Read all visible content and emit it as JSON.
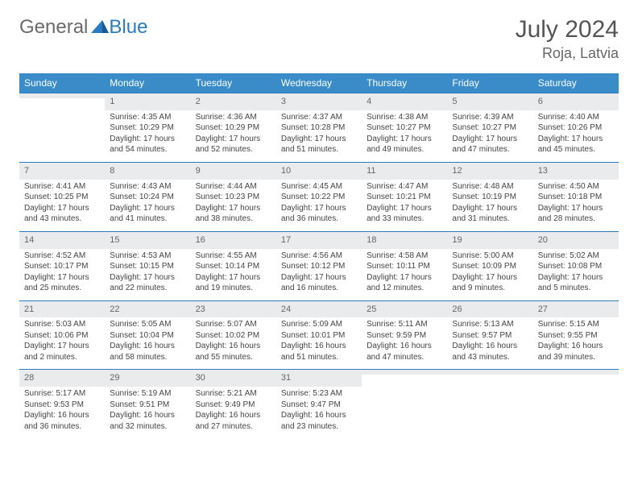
{
  "logo": {
    "general": "General",
    "blue": "Blue"
  },
  "title": "July 2024",
  "location": "Roja, Latvia",
  "weekdays": [
    "Sunday",
    "Monday",
    "Tuesday",
    "Wednesday",
    "Thursday",
    "Friday",
    "Saturday"
  ],
  "colors": {
    "header_bg": "#3a8cc8",
    "header_text": "#ffffff",
    "border": "#2a7bbf",
    "daynum_bg": "#e9ebec",
    "text": "#444444",
    "title_text": "#555555",
    "logo_blue": "#2a7bbf",
    "logo_gray": "#6a6a6a"
  },
  "weeks": [
    [
      {
        "num": "",
        "sunrise": "",
        "sunset": "",
        "daylight": ""
      },
      {
        "num": "1",
        "sunrise": "Sunrise: 4:35 AM",
        "sunset": "Sunset: 10:29 PM",
        "daylight": "Daylight: 17 hours and 54 minutes."
      },
      {
        "num": "2",
        "sunrise": "Sunrise: 4:36 AM",
        "sunset": "Sunset: 10:29 PM",
        "daylight": "Daylight: 17 hours and 52 minutes."
      },
      {
        "num": "3",
        "sunrise": "Sunrise: 4:37 AM",
        "sunset": "Sunset: 10:28 PM",
        "daylight": "Daylight: 17 hours and 51 minutes."
      },
      {
        "num": "4",
        "sunrise": "Sunrise: 4:38 AM",
        "sunset": "Sunset: 10:27 PM",
        "daylight": "Daylight: 17 hours and 49 minutes."
      },
      {
        "num": "5",
        "sunrise": "Sunrise: 4:39 AM",
        "sunset": "Sunset: 10:27 PM",
        "daylight": "Daylight: 17 hours and 47 minutes."
      },
      {
        "num": "6",
        "sunrise": "Sunrise: 4:40 AM",
        "sunset": "Sunset: 10:26 PM",
        "daylight": "Daylight: 17 hours and 45 minutes."
      }
    ],
    [
      {
        "num": "7",
        "sunrise": "Sunrise: 4:41 AM",
        "sunset": "Sunset: 10:25 PM",
        "daylight": "Daylight: 17 hours and 43 minutes."
      },
      {
        "num": "8",
        "sunrise": "Sunrise: 4:43 AM",
        "sunset": "Sunset: 10:24 PM",
        "daylight": "Daylight: 17 hours and 41 minutes."
      },
      {
        "num": "9",
        "sunrise": "Sunrise: 4:44 AM",
        "sunset": "Sunset: 10:23 PM",
        "daylight": "Daylight: 17 hours and 38 minutes."
      },
      {
        "num": "10",
        "sunrise": "Sunrise: 4:45 AM",
        "sunset": "Sunset: 10:22 PM",
        "daylight": "Daylight: 17 hours and 36 minutes."
      },
      {
        "num": "11",
        "sunrise": "Sunrise: 4:47 AM",
        "sunset": "Sunset: 10:21 PM",
        "daylight": "Daylight: 17 hours and 33 minutes."
      },
      {
        "num": "12",
        "sunrise": "Sunrise: 4:48 AM",
        "sunset": "Sunset: 10:19 PM",
        "daylight": "Daylight: 17 hours and 31 minutes."
      },
      {
        "num": "13",
        "sunrise": "Sunrise: 4:50 AM",
        "sunset": "Sunset: 10:18 PM",
        "daylight": "Daylight: 17 hours and 28 minutes."
      }
    ],
    [
      {
        "num": "14",
        "sunrise": "Sunrise: 4:52 AM",
        "sunset": "Sunset: 10:17 PM",
        "daylight": "Daylight: 17 hours and 25 minutes."
      },
      {
        "num": "15",
        "sunrise": "Sunrise: 4:53 AM",
        "sunset": "Sunset: 10:15 PM",
        "daylight": "Daylight: 17 hours and 22 minutes."
      },
      {
        "num": "16",
        "sunrise": "Sunrise: 4:55 AM",
        "sunset": "Sunset: 10:14 PM",
        "daylight": "Daylight: 17 hours and 19 minutes."
      },
      {
        "num": "17",
        "sunrise": "Sunrise: 4:56 AM",
        "sunset": "Sunset: 10:12 PM",
        "daylight": "Daylight: 17 hours and 16 minutes."
      },
      {
        "num": "18",
        "sunrise": "Sunrise: 4:58 AM",
        "sunset": "Sunset: 10:11 PM",
        "daylight": "Daylight: 17 hours and 12 minutes."
      },
      {
        "num": "19",
        "sunrise": "Sunrise: 5:00 AM",
        "sunset": "Sunset: 10:09 PM",
        "daylight": "Daylight: 17 hours and 9 minutes."
      },
      {
        "num": "20",
        "sunrise": "Sunrise: 5:02 AM",
        "sunset": "Sunset: 10:08 PM",
        "daylight": "Daylight: 17 hours and 5 minutes."
      }
    ],
    [
      {
        "num": "21",
        "sunrise": "Sunrise: 5:03 AM",
        "sunset": "Sunset: 10:06 PM",
        "daylight": "Daylight: 17 hours and 2 minutes."
      },
      {
        "num": "22",
        "sunrise": "Sunrise: 5:05 AM",
        "sunset": "Sunset: 10:04 PM",
        "daylight": "Daylight: 16 hours and 58 minutes."
      },
      {
        "num": "23",
        "sunrise": "Sunrise: 5:07 AM",
        "sunset": "Sunset: 10:02 PM",
        "daylight": "Daylight: 16 hours and 55 minutes."
      },
      {
        "num": "24",
        "sunrise": "Sunrise: 5:09 AM",
        "sunset": "Sunset: 10:01 PM",
        "daylight": "Daylight: 16 hours and 51 minutes."
      },
      {
        "num": "25",
        "sunrise": "Sunrise: 5:11 AM",
        "sunset": "Sunset: 9:59 PM",
        "daylight": "Daylight: 16 hours and 47 minutes."
      },
      {
        "num": "26",
        "sunrise": "Sunrise: 5:13 AM",
        "sunset": "Sunset: 9:57 PM",
        "daylight": "Daylight: 16 hours and 43 minutes."
      },
      {
        "num": "27",
        "sunrise": "Sunrise: 5:15 AM",
        "sunset": "Sunset: 9:55 PM",
        "daylight": "Daylight: 16 hours and 39 minutes."
      }
    ],
    [
      {
        "num": "28",
        "sunrise": "Sunrise: 5:17 AM",
        "sunset": "Sunset: 9:53 PM",
        "daylight": "Daylight: 16 hours and 36 minutes."
      },
      {
        "num": "29",
        "sunrise": "Sunrise: 5:19 AM",
        "sunset": "Sunset: 9:51 PM",
        "daylight": "Daylight: 16 hours and 32 minutes."
      },
      {
        "num": "30",
        "sunrise": "Sunrise: 5:21 AM",
        "sunset": "Sunset: 9:49 PM",
        "daylight": "Daylight: 16 hours and 27 minutes."
      },
      {
        "num": "31",
        "sunrise": "Sunrise: 5:23 AM",
        "sunset": "Sunset: 9:47 PM",
        "daylight": "Daylight: 16 hours and 23 minutes."
      },
      {
        "num": "",
        "sunrise": "",
        "sunset": "",
        "daylight": ""
      },
      {
        "num": "",
        "sunrise": "",
        "sunset": "",
        "daylight": ""
      },
      {
        "num": "",
        "sunrise": "",
        "sunset": "",
        "daylight": ""
      }
    ]
  ]
}
